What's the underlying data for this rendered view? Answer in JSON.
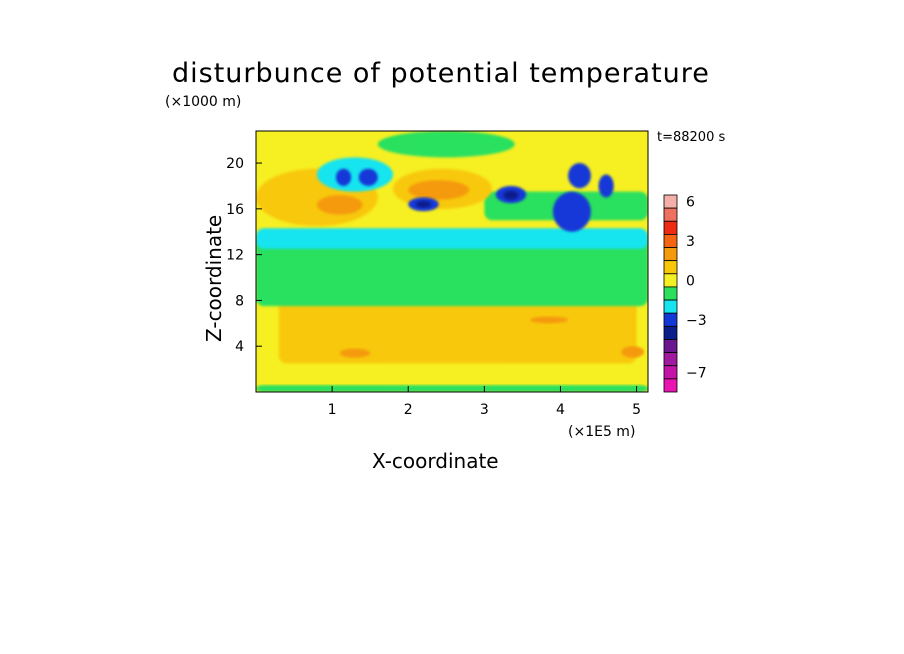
{
  "chart_data": {
    "type": "heatmap",
    "title": "disturbunce of potential temperature",
    "xlabel": "X-coordinate",
    "ylabel": "Z-coordinate",
    "x_unit_label": "(×1E5 m)",
    "y_unit_label": "(×1000 m)",
    "time_label": "t=88200 s",
    "xlim": [
      0,
      5.15
    ],
    "ylim": [
      0,
      22.8
    ],
    "x_ticks": [
      1,
      2,
      3,
      4,
      5
    ],
    "y_ticks": [
      4,
      8,
      12,
      16,
      20
    ],
    "colorbar": {
      "levels": [
        {
          "from": 6,
          "to": 7,
          "color": "#f4b0a8"
        },
        {
          "from": 5,
          "to": 6,
          "color": "#ee7060"
        },
        {
          "from": 4,
          "to": 5,
          "color": "#ee2a12"
        },
        {
          "from": 3,
          "to": 4,
          "color": "#f46412"
        },
        {
          "from": 2,
          "to": 3,
          "color": "#f59a0a"
        },
        {
          "from": 1,
          "to": 2,
          "color": "#f8c808"
        },
        {
          "from": 0,
          "to": 1,
          "color": "#f6ef22"
        },
        {
          "from": -1,
          "to": 0,
          "color": "#2ce05e"
        },
        {
          "from": -2,
          "to": -1,
          "color": "#16e4ee"
        },
        {
          "from": -3,
          "to": -2,
          "color": "#1238d8"
        },
        {
          "from": -4,
          "to": -3,
          "color": "#0a1e8c"
        },
        {
          "from": -5,
          "to": -4,
          "color": "#6a168e"
        },
        {
          "from": -6,
          "to": -5,
          "color": "#a01aa0"
        },
        {
          "from": -7,
          "to": -6,
          "color": "#c414a8"
        },
        {
          "from": -8,
          "to": -7,
          "color": "#ea14b0"
        }
      ],
      "tick_labels": [
        {
          "value": 6,
          "label": "6"
        },
        {
          "value": 3,
          "label": "3"
        },
        {
          "value": 0,
          "label": "0"
        },
        {
          "value": -3,
          "label": "−3"
        },
        {
          "value": -7,
          "label": "−7"
        }
      ]
    },
    "field_regions": [
      {
        "level": 0.5,
        "x": [
          0,
          5.15
        ],
        "z": [
          0,
          22.8
        ],
        "shape": "background"
      },
      {
        "level": 1.5,
        "x": [
          0.3,
          5.0
        ],
        "z": [
          2.5,
          8.5
        ],
        "shape": "band"
      },
      {
        "level": 2.5,
        "x": [
          3.6,
          4.1
        ],
        "z": [
          6.0,
          6.6
        ],
        "shape": "blob"
      },
      {
        "level": 2.5,
        "x": [
          1.1,
          1.5
        ],
        "z": [
          3.0,
          3.8
        ],
        "shape": "blob"
      },
      {
        "level": 2.5,
        "x": [
          4.8,
          5.1
        ],
        "z": [
          3.0,
          4.0
        ],
        "shape": "blob"
      },
      {
        "level": -0.5,
        "x": [
          0,
          5.15
        ],
        "z": [
          7.5,
          13.5
        ],
        "shape": "band"
      },
      {
        "level": -0.5,
        "x": [
          0,
          5.15
        ],
        "z": [
          0,
          0.6
        ],
        "shape": "band"
      },
      {
        "level": -0.5,
        "x": [
          1.6,
          3.4
        ],
        "z": [
          20.5,
          22.8
        ],
        "shape": "blob"
      },
      {
        "level": -0.5,
        "x": [
          3.0,
          5.15
        ],
        "z": [
          15.0,
          17.5
        ],
        "shape": "band"
      },
      {
        "level": 1.5,
        "x": [
          0,
          1.6
        ],
        "z": [
          14.5,
          19.5
        ],
        "shape": "blob"
      },
      {
        "level": 2.5,
        "x": [
          0.8,
          1.4
        ],
        "z": [
          15.5,
          17.2
        ],
        "shape": "blob"
      },
      {
        "level": 1.5,
        "x": [
          1.8,
          3.1
        ],
        "z": [
          16.0,
          19.5
        ],
        "shape": "blob"
      },
      {
        "level": 2.5,
        "x": [
          2.0,
          2.8
        ],
        "z": [
          16.8,
          18.5
        ],
        "shape": "blob"
      },
      {
        "level": 0.5,
        "x": [
          2.1,
          2.4
        ],
        "z": [
          13.5,
          14.5
        ],
        "shape": "blob"
      },
      {
        "level": -1.5,
        "x": [
          0,
          5.15
        ],
        "z": [
          12.5,
          14.3
        ],
        "shape": "band"
      },
      {
        "level": -1.5,
        "x": [
          0.8,
          1.8
        ],
        "z": [
          17.5,
          20.5
        ],
        "shape": "blob"
      },
      {
        "level": -2.5,
        "x": [
          2.0,
          2.4
        ],
        "z": [
          15.8,
          17.0
        ],
        "shape": "blob"
      },
      {
        "level": -3.5,
        "x": [
          2.1,
          2.3
        ],
        "z": [
          16.1,
          16.7
        ],
        "shape": "blob"
      },
      {
        "level": -2.5,
        "x": [
          3.15,
          3.55
        ],
        "z": [
          16.5,
          18.0
        ],
        "shape": "blob"
      },
      {
        "level": -3.5,
        "x": [
          3.25,
          3.45
        ],
        "z": [
          16.8,
          17.6
        ],
        "shape": "blob"
      },
      {
        "level": -2.5,
        "x": [
          3.9,
          4.4
        ],
        "z": [
          14.0,
          17.5
        ],
        "shape": "blob"
      },
      {
        "level": -2.5,
        "x": [
          4.1,
          4.4
        ],
        "z": [
          17.8,
          20.0
        ],
        "shape": "blob"
      },
      {
        "level": -2.5,
        "x": [
          4.5,
          4.7
        ],
        "z": [
          17.0,
          19.0
        ],
        "shape": "blob"
      },
      {
        "level": -2.5,
        "x": [
          1.05,
          1.25
        ],
        "z": [
          18.0,
          19.5
        ],
        "shape": "blob"
      },
      {
        "level": -2.5,
        "x": [
          1.35,
          1.6
        ],
        "z": [
          18.0,
          19.5
        ],
        "shape": "blob"
      }
    ]
  }
}
